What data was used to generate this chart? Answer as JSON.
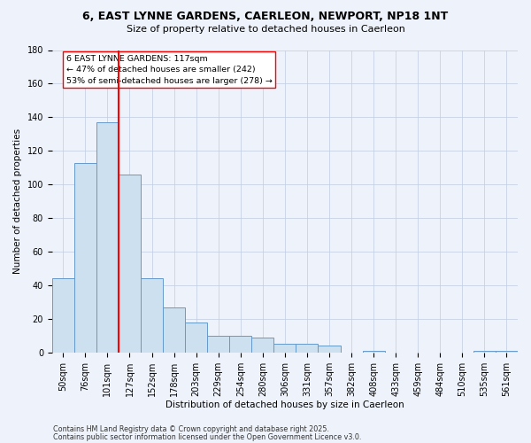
{
  "title": "6, EAST LYNNE GARDENS, CAERLEON, NEWPORT, NP18 1NT",
  "subtitle": "Size of property relative to detached houses in Caerleon",
  "xlabel": "Distribution of detached houses by size in Caerleon",
  "ylabel": "Number of detached properties",
  "bar_color": "#cce0f0",
  "bar_edge_color": "#6699cc",
  "categories": [
    "50sqm",
    "76sqm",
    "101sqm",
    "127sqm",
    "152sqm",
    "178sqm",
    "203sqm",
    "229sqm",
    "254sqm",
    "280sqm",
    "306sqm",
    "331sqm",
    "357sqm",
    "382sqm",
    "408sqm",
    "433sqm",
    "459sqm",
    "484sqm",
    "510sqm",
    "535sqm",
    "561sqm"
  ],
  "values": [
    44,
    113,
    137,
    106,
    44,
    27,
    18,
    10,
    10,
    9,
    5,
    5,
    4,
    0,
    1,
    0,
    0,
    0,
    0,
    1,
    1
  ],
  "ylim": [
    0,
    180
  ],
  "yticks": [
    0,
    20,
    40,
    60,
    80,
    100,
    120,
    140,
    160,
    180
  ],
  "red_line_x": 2.5,
  "annotation_box_text": "6 EAST LYNNE GARDENS: 117sqm\n← 47% of detached houses are smaller (242)\n53% of semi-detached houses are larger (278) →",
  "footer_line1": "Contains HM Land Registry data © Crown copyright and database right 2025.",
  "footer_line2": "Contains public sector information licensed under the Open Government Licence v3.0.",
  "background_color": "#eef2fa",
  "grid_color": "#c0cce0",
  "title_fontsize": 9,
  "subtitle_fontsize": 8,
  "axis_label_fontsize": 7.5,
  "tick_fontsize": 7,
  "footer_fontsize": 5.8
}
